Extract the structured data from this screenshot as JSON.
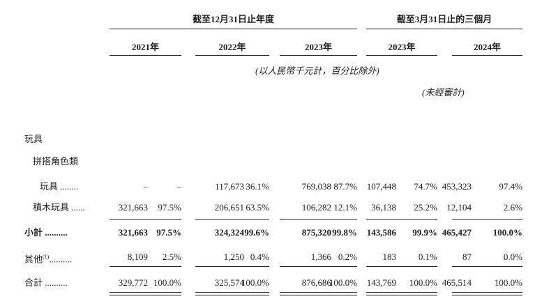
{
  "header": {
    "group1": "截至12月31日止年度",
    "group2": "截至3月31日止的三個月",
    "years": [
      "2021年",
      "2022年",
      "2023年",
      "2023年",
      "2024年"
    ],
    "unit_note": "(以人民幣千元計，百分比除外)",
    "unaudited": "(未經審計)"
  },
  "table": {
    "section": "玩具",
    "subsection": "拼搭角色類",
    "rows": [
      {
        "label": "玩具 ........",
        "cells": [
          "–",
          "–",
          "117,673",
          "36.1%",
          "769,038",
          "87.7%",
          "107,448",
          "74.7%",
          "453,323",
          "97.4%"
        ]
      },
      {
        "label": "積木玩具 ......",
        "cells": [
          "321,663",
          "97.5%",
          "206,651",
          "63.5%",
          "106,282",
          "12.1%",
          "36,138",
          "25.2%",
          "12,104",
          "2.6%"
        ]
      },
      {
        "label": "小計 ..........",
        "cells": [
          "321,663",
          "97.5%",
          "324,324",
          "99.6%",
          "875,320",
          "99.8%",
          "143,586",
          "99.9%",
          "465,427",
          "100.0%"
        ]
      },
      {
        "label": "其他",
        "note": "(1)",
        "leader": "..........",
        "cells": [
          "8,109",
          "2.5%",
          "1,250",
          "0.4%",
          "1,366",
          "0.2%",
          "183",
          "0.1%",
          "87",
          "0.0%"
        ]
      },
      {
        "label": "合計 ..........",
        "cells": [
          "329,772",
          "100.0%",
          "325,574",
          "100.0%",
          "876,686",
          "100.0%",
          "143,769",
          "100.0%",
          "465,514",
          "100.0%"
        ]
      }
    ]
  }
}
